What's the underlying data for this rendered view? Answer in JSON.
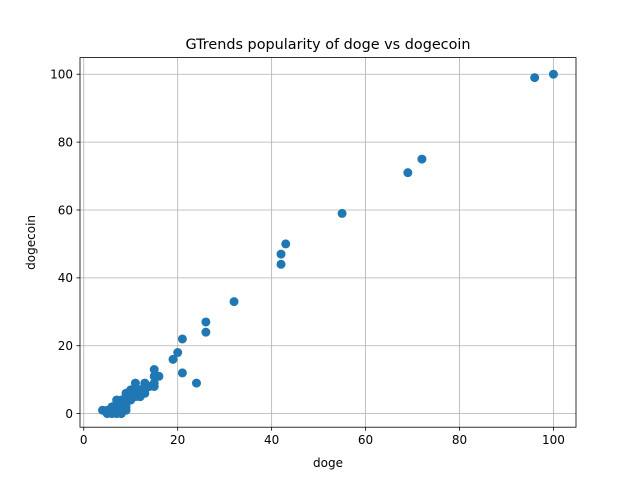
{
  "chart_data": {
    "type": "scatter",
    "title": "GTrends popularity of doge vs dogecoin",
    "xlabel": "doge",
    "ylabel": "dogecoin",
    "xlim": [
      -0.8,
      104.8
    ],
    "ylim": [
      -4.0,
      104.9
    ],
    "xticks": [
      0,
      20,
      40,
      60,
      80,
      100
    ],
    "yticks": [
      0,
      20,
      40,
      60,
      80,
      100
    ],
    "grid": true,
    "marker_color": "#1f77b4",
    "points": [
      {
        "x": 4,
        "y": 1
      },
      {
        "x": 5,
        "y": 1
      },
      {
        "x": 5,
        "y": 0
      },
      {
        "x": 6,
        "y": 0
      },
      {
        "x": 6,
        "y": 1
      },
      {
        "x": 6,
        "y": 2
      },
      {
        "x": 7,
        "y": 0
      },
      {
        "x": 7,
        "y": 1
      },
      {
        "x": 7,
        "y": 2
      },
      {
        "x": 7,
        "y": 3
      },
      {
        "x": 7,
        "y": 4
      },
      {
        "x": 8,
        "y": 0
      },
      {
        "x": 8,
        "y": 1
      },
      {
        "x": 8,
        "y": 2
      },
      {
        "x": 8,
        "y": 3
      },
      {
        "x": 8,
        "y": 4
      },
      {
        "x": 9,
        "y": 1
      },
      {
        "x": 9,
        "y": 2
      },
      {
        "x": 9,
        "y": 3
      },
      {
        "x": 9,
        "y": 5
      },
      {
        "x": 9,
        "y": 6
      },
      {
        "x": 10,
        "y": 4
      },
      {
        "x": 10,
        "y": 5
      },
      {
        "x": 10,
        "y": 6
      },
      {
        "x": 10,
        "y": 7
      },
      {
        "x": 11,
        "y": 5
      },
      {
        "x": 11,
        "y": 6
      },
      {
        "x": 11,
        "y": 7
      },
      {
        "x": 11,
        "y": 8
      },
      {
        "x": 11,
        "y": 9
      },
      {
        "x": 12,
        "y": 5
      },
      {
        "x": 12,
        "y": 6
      },
      {
        "x": 12,
        "y": 7
      },
      {
        "x": 13,
        "y": 6
      },
      {
        "x": 13,
        "y": 7
      },
      {
        "x": 13,
        "y": 8
      },
      {
        "x": 13,
        "y": 9
      },
      {
        "x": 14,
        "y": 8
      },
      {
        "x": 15,
        "y": 8
      },
      {
        "x": 15,
        "y": 9
      },
      {
        "x": 15,
        "y": 11
      },
      {
        "x": 15,
        "y": 13
      },
      {
        "x": 16,
        "y": 11
      },
      {
        "x": 19,
        "y": 16
      },
      {
        "x": 20,
        "y": 18
      },
      {
        "x": 21,
        "y": 12
      },
      {
        "x": 21,
        "y": 22
      },
      {
        "x": 24,
        "y": 9
      },
      {
        "x": 26,
        "y": 24
      },
      {
        "x": 26,
        "y": 27
      },
      {
        "x": 32,
        "y": 33
      },
      {
        "x": 42,
        "y": 44
      },
      {
        "x": 42,
        "y": 47
      },
      {
        "x": 43,
        "y": 50
      },
      {
        "x": 55,
        "y": 59
      },
      {
        "x": 69,
        "y": 71
      },
      {
        "x": 72,
        "y": 75
      },
      {
        "x": 96,
        "y": 99
      },
      {
        "x": 100,
        "y": 100
      }
    ]
  }
}
